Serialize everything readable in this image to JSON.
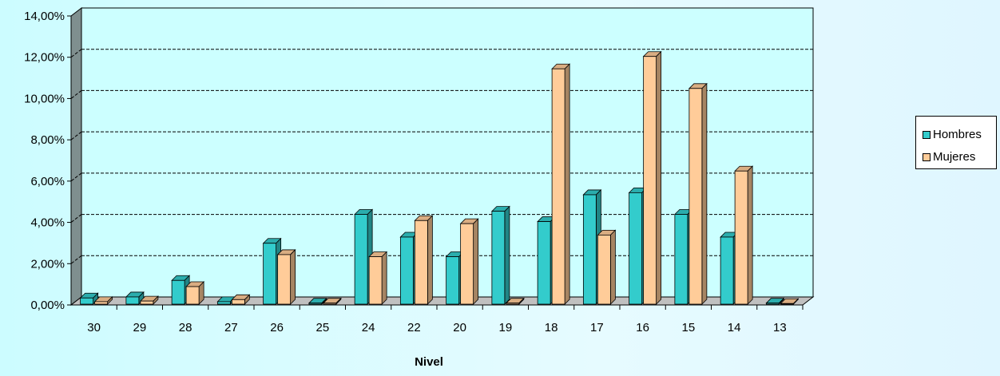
{
  "chart_data": {
    "type": "bar",
    "title": "",
    "xlabel": "Nivel",
    "ylabel": "",
    "ylim": [
      0,
      14
    ],
    "y_ticks": [
      "0,00%",
      "2,00%",
      "4,00%",
      "6,00%",
      "8,00%",
      "10,00%",
      "12,00%",
      "14,00%"
    ],
    "categories": [
      "30",
      "29",
      "28",
      "27",
      "26",
      "25",
      "24",
      "22",
      "20",
      "19",
      "18",
      "17",
      "16",
      "15",
      "14",
      "13"
    ],
    "series": [
      {
        "name": "Hombres",
        "color": "#33cccc",
        "values": [
          0.3,
          0.35,
          1.15,
          0.12,
          2.95,
          0.05,
          4.35,
          3.25,
          2.3,
          4.5,
          4.0,
          5.3,
          5.4,
          4.35,
          3.25,
          0.05
        ]
      },
      {
        "name": "Mujeres",
        "color": "#ffcc99",
        "values": [
          0.12,
          0.15,
          0.85,
          0.22,
          2.4,
          0.05,
          2.3,
          4.05,
          3.9,
          0.05,
          11.4,
          3.35,
          12.0,
          10.45,
          6.45,
          0.03
        ]
      }
    ],
    "grid": true,
    "legend_position": "right"
  }
}
